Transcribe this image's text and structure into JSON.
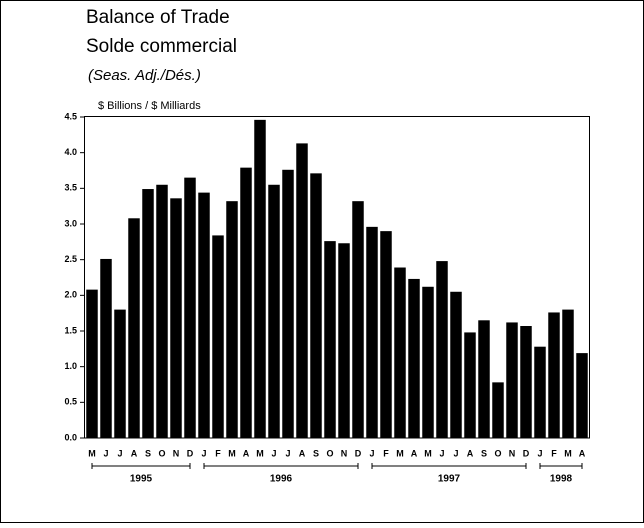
{
  "chart_data": {
    "type": "bar",
    "title": "Balance of Trade",
    "subtitle": "Solde commercial",
    "note": "(Seas. Adj./Dés.)",
    "y_label": "$ Billions / $ Milliards",
    "color": "#000000",
    "ylim": [
      0,
      4.5
    ],
    "yticks": [
      {
        "value": 0,
        "label": "0.0"
      },
      0.5,
      {
        "value": 1,
        "label": "1.0"
      },
      1.5,
      {
        "value": 2,
        "label": "2.0"
      },
      2.5,
      {
        "value": 3,
        "label": "3.0"
      },
      3.5,
      {
        "value": 4,
        "label": "4.0"
      },
      4.5
    ],
    "groups": [
      {
        "label": "1995",
        "categories": [
          "M",
          "J",
          "J",
          "A",
          "S",
          "O",
          "N",
          "D"
        ],
        "values": [
          2.08,
          2.51,
          1.8,
          3.08,
          3.49,
          3.55,
          3.36,
          3.65
        ]
      },
      {
        "label": "1996",
        "categories": [
          "J",
          "F",
          "M",
          "A",
          "M",
          "J",
          "J",
          "A",
          "S",
          "O",
          "N",
          "D"
        ],
        "values": [
          3.44,
          2.84,
          3.32,
          3.79,
          4.46,
          3.55,
          3.76,
          4.13,
          3.71,
          2.76,
          2.73,
          3.32
        ]
      },
      {
        "label": "1997",
        "categories": [
          "J",
          "F",
          "M",
          "A",
          "M",
          "J",
          "J",
          "A",
          "S",
          "O",
          "N",
          "D"
        ],
        "values": [
          2.96,
          2.9,
          2.39,
          2.23,
          2.12,
          2.48,
          2.05,
          1.48,
          1.65,
          0.78,
          1.62,
          1.57
        ]
      },
      {
        "label": "1998",
        "categories": [
          "J",
          "F",
          "M",
          "A"
        ],
        "values": [
          1.28,
          1.76,
          1.8,
          1.19
        ]
      }
    ]
  }
}
